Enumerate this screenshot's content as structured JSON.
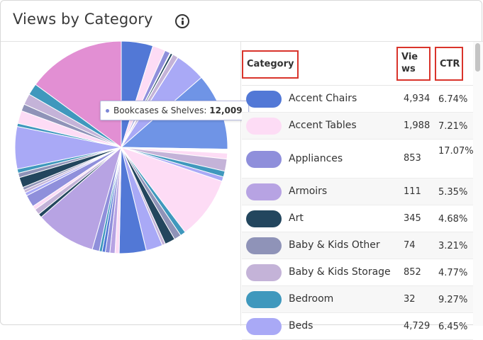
{
  "header": {
    "title": "Views by Category",
    "info_icon": "info-circle-icon"
  },
  "tooltip": {
    "label": "Bookcases & Shelves:",
    "value": "12,009"
  },
  "table": {
    "columns": {
      "category": "Category",
      "views": "Views",
      "ctr": "CTR"
    },
    "rows": [
      {
        "name": "Accent Chairs",
        "views": "4,934",
        "ctr": "6.74%",
        "color": "#5278d6"
      },
      {
        "name": "Accent Tables",
        "views": "1,988",
        "ctr": "7.21%",
        "color": "#fddcf5"
      },
      {
        "name": "Appliances",
        "views": "853",
        "ctr": "17.07%",
        "color": "#8f8fdb"
      },
      {
        "name": "Armoirs",
        "views": "111",
        "ctr": "5.35%",
        "color": "#b7a3e3"
      },
      {
        "name": "Art",
        "views": "345",
        "ctr": "4.68%",
        "color": "#23465e"
      },
      {
        "name": "Baby & Kids Other",
        "views": "74",
        "ctr": "3.21%",
        "color": "#8f93b8"
      },
      {
        "name": "Baby & Kids Storage",
        "views": "852",
        "ctr": "4.77%",
        "color": "#c4b3d8"
      },
      {
        "name": "Bedroom",
        "views": "32",
        "ctr": "9.27%",
        "color": "#3f98bd"
      },
      {
        "name": "Beds",
        "views": "4,729",
        "ctr": "6.45%",
        "color": "#a9a9f6"
      }
    ]
  },
  "chart_data": {
    "type": "pie",
    "title": "Views by Category",
    "highlighted": "Bookcases & Shelves",
    "slices": [
      {
        "label": "Accent Chairs",
        "value": 4934,
        "color": "#5278d6"
      },
      {
        "label": "Accent Tables",
        "value": 1988,
        "color": "#fddcf5"
      },
      {
        "label": "Appliances",
        "value": 853,
        "color": "#8f8fdb"
      },
      {
        "label": "Armoirs",
        "value": 111,
        "color": "#b7a3e3"
      },
      {
        "label": "Art",
        "value": 345,
        "color": "#23465e"
      },
      {
        "label": "Baby & Kids Other",
        "value": 74,
        "color": "#8f93b8"
      },
      {
        "label": "Baby & Kids Storage",
        "value": 852,
        "color": "#c4b3d8"
      },
      {
        "label": "Bedroom",
        "value": 32,
        "color": "#3f98bd"
      },
      {
        "label": "Beds",
        "value": 4729,
        "color": "#a9a9f6"
      },
      {
        "label": "Bookcases & Shelves",
        "value": 12009,
        "color": "#6f94e6"
      },
      {
        "label": "",
        "value": 620,
        "color": "#ffffff"
      },
      {
        "label": "",
        "value": 900,
        "color": "#fddcf5"
      },
      {
        "label": "",
        "value": 1900,
        "color": "#c4b3d8"
      },
      {
        "label": "",
        "value": 900,
        "color": "#3f98bd"
      },
      {
        "label": "",
        "value": 700,
        "color": "#a9a9f6"
      },
      {
        "label": "",
        "value": 9800,
        "color": "#fddcf5"
      },
      {
        "label": "",
        "value": 850,
        "color": "#3f98bd"
      },
      {
        "label": "",
        "value": 1100,
        "color": "#8f93b8"
      },
      {
        "label": "",
        "value": 1600,
        "color": "#23465e"
      },
      {
        "label": "",
        "value": 500,
        "color": "#c4b3d8"
      },
      {
        "label": "",
        "value": 2600,
        "color": "#a9a9f6"
      },
      {
        "label": "",
        "value": 4200,
        "color": "#5278d6"
      },
      {
        "label": "",
        "value": 650,
        "color": "#fddcf5"
      },
      {
        "label": "",
        "value": 800,
        "color": "#b7a3e3"
      },
      {
        "label": "",
        "value": 700,
        "color": "#8f8fdb"
      },
      {
        "label": "",
        "value": 500,
        "color": "#5278d6"
      },
      {
        "label": "",
        "value": 450,
        "color": "#3f98bd"
      },
      {
        "label": "",
        "value": 1100,
        "color": "#8f8fdb"
      },
      {
        "label": "",
        "value": 9400,
        "color": "#b7a3e3"
      },
      {
        "label": "",
        "value": 600,
        "color": "#23465e"
      },
      {
        "label": "",
        "value": 900,
        "color": "#c4b3d8"
      },
      {
        "label": "",
        "value": 600,
        "color": "#fddcf5"
      },
      {
        "label": "",
        "value": 1900,
        "color": "#8f8fdb"
      },
      {
        "label": "",
        "value": 500,
        "color": "#a9a9f6"
      },
      {
        "label": "",
        "value": 450,
        "color": "#c4b3d8"
      },
      {
        "label": "",
        "value": 450,
        "color": "#8f93b8"
      },
      {
        "label": "",
        "value": 1600,
        "color": "#23465e"
      },
      {
        "label": "",
        "value": 700,
        "color": "#8f93b8"
      },
      {
        "label": "",
        "value": 650,
        "color": "#3f98bd"
      },
      {
        "label": "",
        "value": 6600,
        "color": "#a9a9f6"
      },
      {
        "label": "",
        "value": 500,
        "color": "#3f98bd"
      },
      {
        "label": "",
        "value": 2000,
        "color": "#fddcf5"
      },
      {
        "label": "",
        "value": 1100,
        "color": "#8f93b8"
      },
      {
        "label": "",
        "value": 1700,
        "color": "#c4b3d8"
      },
      {
        "label": "",
        "value": 1800,
        "color": "#3f98bd"
      },
      {
        "label": "",
        "value": 15300,
        "color": "#e28fd3"
      }
    ]
  }
}
